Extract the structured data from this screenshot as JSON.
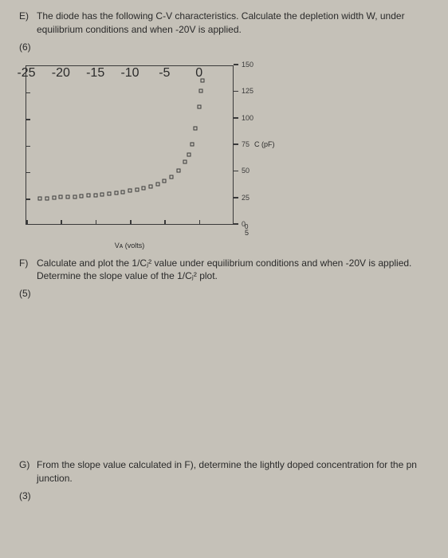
{
  "questionE": {
    "label": "E)",
    "text": "The diode has the following C-V characteristics. Calculate the depletion width W, under equilibrium conditions and when -20V is applied.",
    "points": "(6)"
  },
  "questionF": {
    "label": "F)",
    "text": "Calculate and plot the 1/Cⱼ² value under equilibrium conditions and when -20V is applied. Determine the slope value of the 1/Cⱼ² plot.",
    "points": "(5)"
  },
  "questionG": {
    "label": "G)",
    "text": "From the slope value calculated in F), determine the lightly doped concentration for the pn junction.",
    "points": "(3)"
  },
  "chart": {
    "type": "scatter",
    "xlim": [
      -25,
      5
    ],
    "ylim": [
      0,
      150
    ],
    "x_ticks": [
      -25,
      -20,
      -15,
      -10,
      -5,
      0,
      5
    ],
    "y_ticks": [
      0,
      25,
      50,
      75,
      100,
      125,
      150
    ],
    "x_title": "Vᴀ (volts)",
    "y_unit": "C (pF)",
    "y_unit_at": 75,
    "marker_border": "#3a3a3a",
    "axis_color": "#3a3a3a",
    "background_color": "#c5c1b8",
    "data": [
      {
        "x": -23,
        "y": 24
      },
      {
        "x": -22,
        "y": 24
      },
      {
        "x": -21,
        "y": 24.5
      },
      {
        "x": -20,
        "y": 25
      },
      {
        "x": -19,
        "y": 25
      },
      {
        "x": -18,
        "y": 25.5
      },
      {
        "x": -17,
        "y": 26
      },
      {
        "x": -16,
        "y": 26.5
      },
      {
        "x": -15,
        "y": 27
      },
      {
        "x": -14,
        "y": 27.5
      },
      {
        "x": -13,
        "y": 28
      },
      {
        "x": -12,
        "y": 29
      },
      {
        "x": -11,
        "y": 30
      },
      {
        "x": -10,
        "y": 31
      },
      {
        "x": -9,
        "y": 32
      },
      {
        "x": -8,
        "y": 33.5
      },
      {
        "x": -7,
        "y": 35
      },
      {
        "x": -6,
        "y": 37
      },
      {
        "x": -5,
        "y": 40
      },
      {
        "x": -4,
        "y": 44
      },
      {
        "x": -3,
        "y": 50
      },
      {
        "x": -2,
        "y": 58
      },
      {
        "x": -1.5,
        "y": 65
      },
      {
        "x": -1,
        "y": 75
      },
      {
        "x": -0.5,
        "y": 90
      },
      {
        "x": 0,
        "y": 110
      },
      {
        "x": 0.3,
        "y": 125
      },
      {
        "x": 0.5,
        "y": 135
      }
    ]
  }
}
